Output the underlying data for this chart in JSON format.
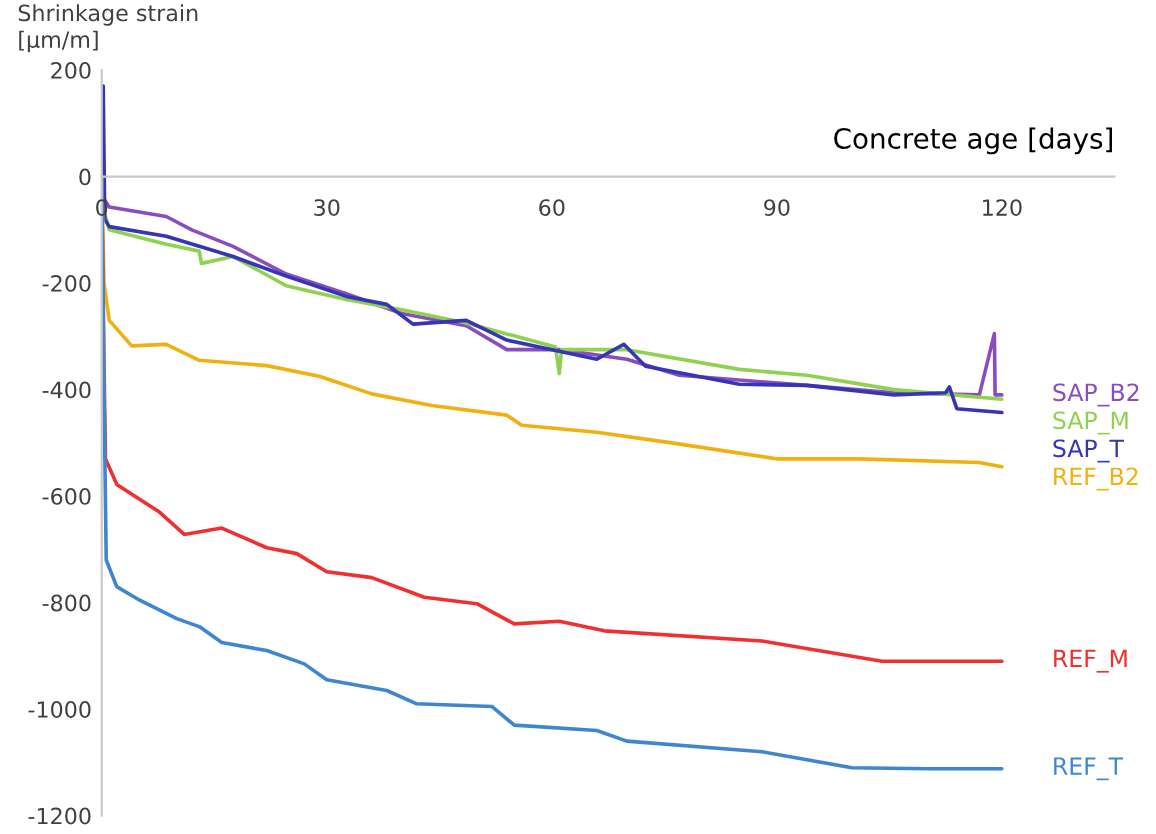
{
  "chart_data": {
    "type": "line",
    "xlabel": "Concrete age [days]",
    "ylabel": "Shrinkage strain\n[µm/m]",
    "xlim": [
      0,
      135
    ],
    "xticks": [
      0,
      30,
      60,
      90,
      120
    ],
    "ylim": [
      -1200,
      200
    ],
    "yticks": [
      -1200,
      -1000,
      -800,
      -600,
      -400,
      -200,
      0,
      200
    ],
    "grid": false,
    "legend": false,
    "series": [
      {
        "name": "SAP_B2",
        "color": "#8a4dc0",
        "x": [
          0,
          0.2,
          1,
          8.6,
          12,
          17.5,
          24.6,
          32.6,
          40,
          48.6,
          54,
          61,
          70,
          77,
          94,
          105.6,
          117,
          119,
          119.1,
          120
        ],
        "values": [
          0,
          -40,
          -57,
          -75,
          -100,
          -131,
          -183,
          -220,
          -257,
          -280,
          -325,
          -325,
          -343,
          -373,
          -392,
          -406,
          -410,
          -295,
          -410,
          -410
        ]
      },
      {
        "name": "SAP_M",
        "color": "#8fd150",
        "x": [
          0,
          0.2,
          1,
          8.6,
          13,
          13.3,
          17.5,
          24.6,
          32.6,
          40,
          48.6,
          60.5,
          61,
          61.3,
          70,
          85,
          94,
          105.6,
          120
        ],
        "values": [
          0,
          -60,
          -100,
          -127,
          -140,
          -163,
          -150,
          -205,
          -231,
          -250,
          -275,
          -320,
          -370,
          -325,
          -325,
          -362,
          -373,
          -400,
          -418
        ]
      },
      {
        "name": "SAP_T",
        "color": "#3535b5",
        "x": [
          0,
          0.2,
          0.4,
          1,
          8.6,
          13,
          17.5,
          24.6,
          32.6,
          38,
          41.5,
          48.6,
          54,
          66,
          69.6,
          72.5,
          85,
          94,
          105.6,
          112.5,
          113,
          114,
          120
        ],
        "values": [
          0,
          170,
          -80,
          -94,
          -112,
          -131,
          -150,
          -187,
          -225,
          -240,
          -277,
          -270,
          -307,
          -343,
          -315,
          -356,
          -390,
          -392,
          -410,
          -406,
          -395,
          -436,
          -443
        ]
      },
      {
        "name": "REF_B2",
        "color": "#f0b010",
        "x": [
          0,
          0.3,
          1,
          4,
          8.6,
          13,
          22,
          29,
          36,
          44,
          54,
          56,
          66,
          76,
          90,
          101,
          117,
          120
        ],
        "values": [
          0,
          -200,
          -270,
          -318,
          -315,
          -345,
          -355,
          -375,
          -408,
          -430,
          -448,
          -467,
          -480,
          -500,
          -530,
          -530,
          -537,
          -545
        ]
      },
      {
        "name": "REF_M",
        "color": "#f03030",
        "x": [
          0,
          0.3,
          0.5,
          2,
          7.7,
          11,
          16,
          22,
          26,
          30,
          36,
          43,
          50,
          55,
          61,
          67,
          88,
          104,
          120
        ],
        "values": [
          0,
          -350,
          -530,
          -578,
          -630,
          -672,
          -660,
          -697,
          -708,
          -742,
          -753,
          -790,
          -802,
          -840,
          -835,
          -853,
          -872,
          -910,
          -910
        ]
      },
      {
        "name": "REF_T",
        "color": "#3f86d0",
        "x": [
          0,
          0.3,
          0.6,
          2,
          5,
          10,
          13,
          16,
          22,
          27,
          30,
          38,
          42,
          52,
          55,
          66,
          70,
          88,
          100,
          110,
          120
        ],
        "values": [
          0,
          -400,
          -720,
          -770,
          -795,
          -830,
          -845,
          -875,
          -890,
          -915,
          -945,
          -965,
          -990,
          -995,
          -1030,
          -1040,
          -1060,
          -1080,
          -1110,
          -1112,
          -1112
        ]
      }
    ]
  }
}
